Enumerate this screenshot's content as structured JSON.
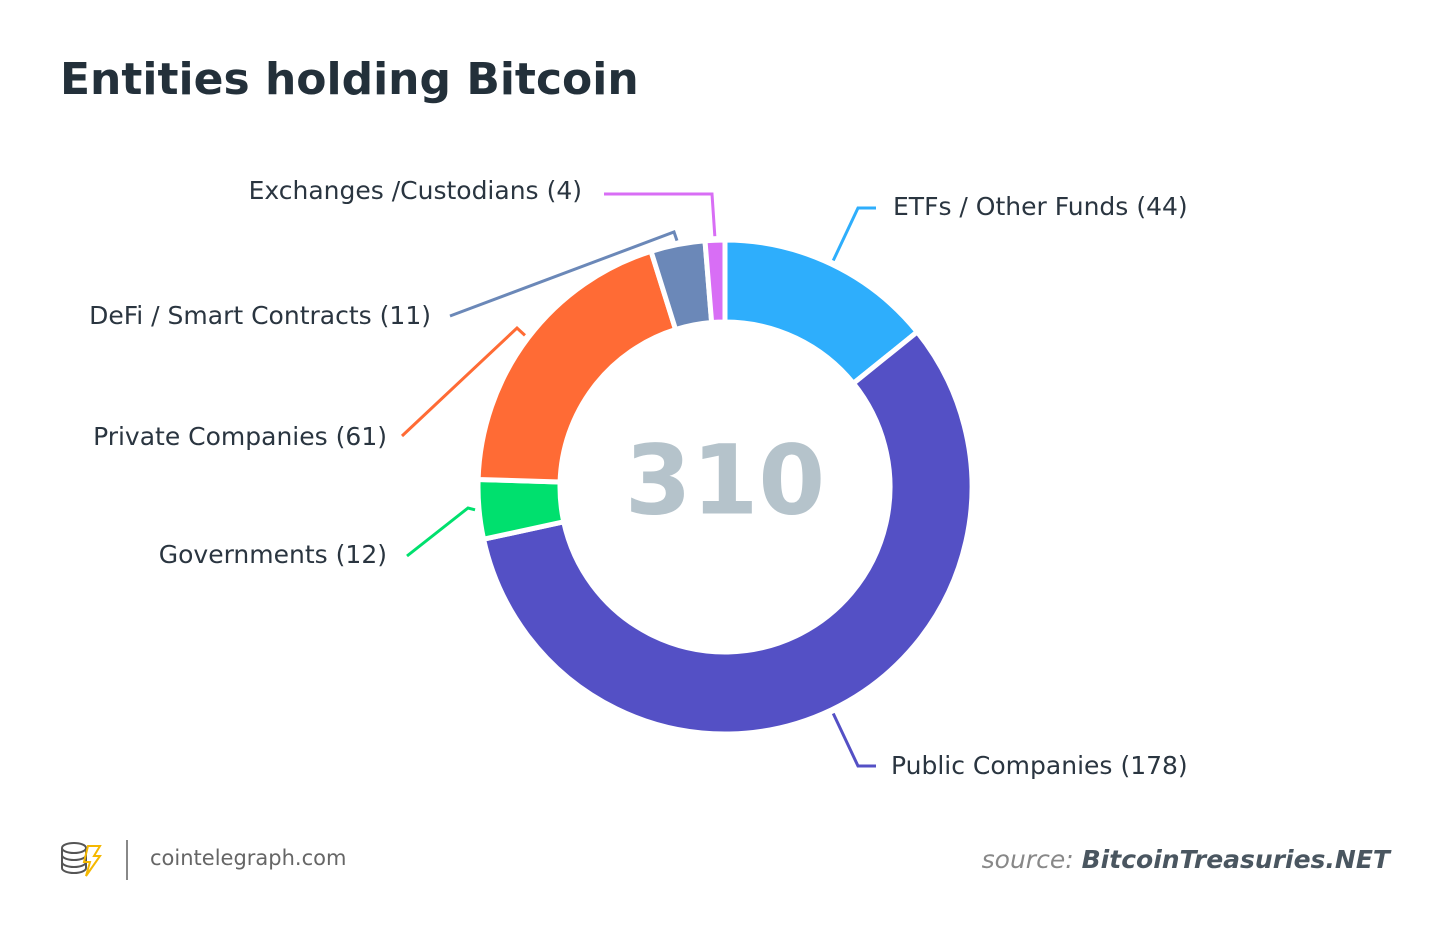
{
  "chart_data": {
    "type": "donut",
    "title": "Entities holding Bitcoin",
    "total": 310,
    "categories": [
      "ETFs / Other Funds",
      "Public Companies",
      "Governments",
      "Private Companies",
      "DeFi / Smart Contracts",
      "Exchanges /Custodians"
    ],
    "values": [
      44,
      178,
      12,
      61,
      11,
      4
    ],
    "value_labels": [
      "(44)",
      "(178)",
      "(12)",
      "(61)",
      "(11)",
      "(4)"
    ],
    "colors": [
      "#2eaefc",
      "#5450c5",
      "#00e06e",
      "#ff6b35",
      "#6b88b8",
      "#d86ef5"
    ]
  },
  "footer": {
    "brand": "cointelegraph.com",
    "source_label": "source:",
    "source": "BitcoinTreasuries.NET"
  }
}
